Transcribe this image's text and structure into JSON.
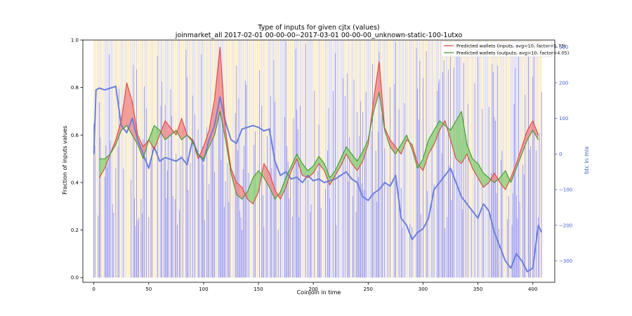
{
  "chart_data": {
    "type": "line",
    "title": "Type of inputs for given cjtx (values)",
    "subtitle": "joinmarket_all 2017-02-01 00-00-00--2017-03-01 00-00-00_unknown-static-100-1utxo",
    "xlabel": "Coinjoin in time",
    "ylabel": "Fraction of inputs values",
    "y2label": "btc in mix",
    "xlim": [
      -10,
      420
    ],
    "ylim": [
      -0.02,
      1.0
    ],
    "y2lim": [
      -360,
      320
    ],
    "x_ticks": [
      0,
      50,
      100,
      150,
      200,
      250,
      300,
      350,
      400
    ],
    "y_ticks": [
      0.0,
      0.2,
      0.4,
      0.6,
      0.8,
      1.0
    ],
    "y2_ticks": [
      300,
      200,
      100,
      0,
      -100,
      -200,
      -300
    ],
    "y_tick_labels": [
      "0.0",
      "0.2",
      "0.4",
      "0.6",
      "0.8",
      "1.0"
    ],
    "y2_tick_labels": [
      "300",
      "200",
      "100",
      "0",
      "−100",
      "−200",
      "−300"
    ],
    "grid": false,
    "legend_position": "top-right",
    "legend": [
      {
        "label": "Predicted wallets (inputs, avg=10, factor=5.73)",
        "color": "#e0443a"
      },
      {
        "label": "Predicted wallets (outputs, avg=10, factor=4.05)",
        "color": "#3a9a2a"
      }
    ],
    "colors": {
      "inputs_line": "#e0443a",
      "inputs_fill": "#f08a8a",
      "outputs_line": "#3a9a2a",
      "outputs_fill": "#8fcf78",
      "btc_line": "#6a7fdc",
      "bars_fraction": "#6f6ff5",
      "bars_remix": "#d8d8ee",
      "bars_other": "#fde9b8",
      "y2_axis_color": "#4060d0"
    },
    "series": [
      {
        "name": "Predicted wallets (inputs, avg=10, factor=5.73)",
        "x": [
          5,
          10,
          15,
          20,
          25,
          30,
          35,
          40,
          45,
          50,
          55,
          60,
          65,
          70,
          75,
          80,
          85,
          90,
          95,
          100,
          105,
          110,
          115,
          120,
          125,
          130,
          135,
          140,
          145,
          150,
          155,
          160,
          165,
          170,
          175,
          180,
          185,
          190,
          195,
          200,
          205,
          210,
          215,
          220,
          225,
          230,
          235,
          240,
          245,
          250,
          255,
          260,
          265,
          270,
          275,
          280,
          285,
          290,
          295,
          300,
          305,
          310,
          315,
          320,
          325,
          330,
          335,
          340,
          345,
          350,
          355,
          360,
          365,
          370,
          375,
          380,
          385,
          390,
          395,
          400,
          405
        ],
        "values": [
          0.42,
          0.46,
          0.52,
          0.58,
          0.66,
          0.82,
          0.74,
          0.6,
          0.55,
          0.58,
          0.54,
          0.6,
          0.66,
          0.63,
          0.6,
          0.67,
          0.6,
          0.58,
          0.5,
          0.55,
          0.62,
          0.75,
          0.97,
          0.62,
          0.46,
          0.4,
          0.38,
          0.33,
          0.31,
          0.36,
          0.48,
          0.44,
          0.37,
          0.33,
          0.38,
          0.45,
          0.5,
          0.43,
          0.42,
          0.44,
          0.48,
          0.45,
          0.39,
          0.43,
          0.47,
          0.52,
          0.48,
          0.45,
          0.49,
          0.56,
          0.75,
          0.91,
          0.63,
          0.58,
          0.55,
          0.52,
          0.58,
          0.56,
          0.48,
          0.45,
          0.52,
          0.56,
          0.62,
          0.66,
          0.58,
          0.5,
          0.48,
          0.52,
          0.46,
          0.42,
          0.38,
          0.4,
          0.44,
          0.4,
          0.37,
          0.42,
          0.48,
          0.55,
          0.62,
          0.66,
          0.6
        ]
      },
      {
        "name": "Predicted wallets (outputs, avg=10, factor=4.05)",
        "x": [
          5,
          10,
          15,
          20,
          25,
          30,
          35,
          40,
          45,
          50,
          55,
          60,
          65,
          70,
          75,
          80,
          85,
          90,
          95,
          100,
          105,
          110,
          115,
          120,
          125,
          130,
          135,
          140,
          145,
          150,
          155,
          160,
          165,
          170,
          175,
          180,
          185,
          190,
          195,
          200,
          205,
          210,
          215,
          220,
          225,
          230,
          235,
          240,
          245,
          250,
          255,
          260,
          265,
          270,
          275,
          280,
          285,
          290,
          295,
          300,
          305,
          310,
          315,
          320,
          325,
          330,
          335,
          340,
          345,
          350,
          355,
          360,
          365,
          370,
          375,
          380,
          385,
          390,
          395,
          400,
          405
        ],
        "values": [
          0.5,
          0.5,
          0.52,
          0.56,
          0.62,
          0.64,
          0.6,
          0.56,
          0.5,
          0.58,
          0.64,
          0.62,
          0.58,
          0.6,
          0.62,
          0.58,
          0.6,
          0.57,
          0.52,
          0.5,
          0.55,
          0.6,
          0.7,
          0.58,
          0.44,
          0.35,
          0.33,
          0.36,
          0.42,
          0.45,
          0.42,
          0.38,
          0.33,
          0.36,
          0.42,
          0.47,
          0.52,
          0.48,
          0.45,
          0.47,
          0.51,
          0.48,
          0.42,
          0.45,
          0.5,
          0.55,
          0.52,
          0.49,
          0.53,
          0.58,
          0.7,
          0.78,
          0.62,
          0.55,
          0.52,
          0.56,
          0.6,
          0.54,
          0.46,
          0.5,
          0.58,
          0.62,
          0.66,
          0.64,
          0.62,
          0.66,
          0.7,
          0.56,
          0.5,
          0.48,
          0.44,
          0.42,
          0.4,
          0.42,
          0.45,
          0.4,
          0.46,
          0.52,
          0.58,
          0.62,
          0.58
        ]
      },
      {
        "name": "btc in mix",
        "axis": "right",
        "x": [
          0,
          2,
          5,
          10,
          15,
          20,
          25,
          30,
          35,
          40,
          45,
          50,
          55,
          60,
          65,
          70,
          75,
          80,
          85,
          90,
          95,
          100,
          105,
          110,
          115,
          120,
          125,
          130,
          135,
          140,
          145,
          150,
          155,
          160,
          165,
          170,
          175,
          180,
          185,
          190,
          195,
          200,
          205,
          210,
          215,
          220,
          225,
          230,
          235,
          240,
          245,
          250,
          255,
          260,
          265,
          270,
          275,
          280,
          285,
          290,
          295,
          300,
          305,
          310,
          315,
          320,
          325,
          330,
          335,
          340,
          345,
          350,
          355,
          360,
          365,
          370,
          375,
          380,
          385,
          390,
          395,
          400,
          405,
          408
        ],
        "values": [
          0,
          180,
          185,
          180,
          185,
          190,
          80,
          60,
          100,
          40,
          0,
          -40,
          20,
          -20,
          -10,
          -15,
          -20,
          -10,
          -30,
          40,
          0,
          -20,
          40,
          80,
          160,
          90,
          40,
          30,
          70,
          75,
          80,
          75,
          65,
          70,
          -20,
          -60,
          -50,
          -70,
          -65,
          -80,
          -60,
          -75,
          -70,
          -80,
          -75,
          -70,
          -60,
          -50,
          -70,
          -80,
          -120,
          -130,
          -110,
          -100,
          -80,
          -90,
          -60,
          -180,
          -200,
          -240,
          -220,
          -210,
          -180,
          -100,
          -80,
          -60,
          -40,
          -80,
          -120,
          -140,
          -160,
          -180,
          -140,
          -160,
          -220,
          -260,
          -300,
          -320,
          -280,
          -300,
          -330,
          -320,
          -200,
          -220
        ]
      }
    ]
  }
}
